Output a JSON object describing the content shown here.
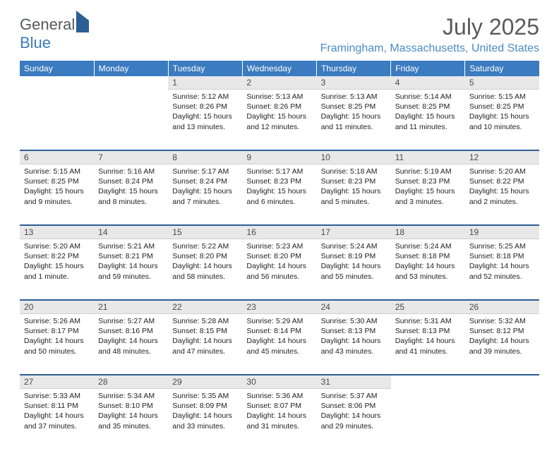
{
  "brand": {
    "part1": "General",
    "part2": "Blue"
  },
  "title": "July 2025",
  "location": "Framingham, Massachusetts, United States",
  "colors": {
    "header_bg": "#3b7bbf",
    "header_text": "#ffffff",
    "daynum_bg": "#e8e8e8",
    "week_sep": "#2b5f93",
    "title_text": "#5a5a5a",
    "location_text": "#4a8bc4",
    "body_text": "#222222"
  },
  "columns": [
    "Sunday",
    "Monday",
    "Tuesday",
    "Wednesday",
    "Thursday",
    "Friday",
    "Saturday"
  ],
  "weeks": [
    [
      null,
      null,
      {
        "n": "1",
        "rise": "5:12 AM",
        "set": "8:26 PM",
        "day": "15 hours and 13 minutes."
      },
      {
        "n": "2",
        "rise": "5:13 AM",
        "set": "8:26 PM",
        "day": "15 hours and 12 minutes."
      },
      {
        "n": "3",
        "rise": "5:13 AM",
        "set": "8:25 PM",
        "day": "15 hours and 11 minutes."
      },
      {
        "n": "4",
        "rise": "5:14 AM",
        "set": "8:25 PM",
        "day": "15 hours and 11 minutes."
      },
      {
        "n": "5",
        "rise": "5:15 AM",
        "set": "8:25 PM",
        "day": "15 hours and 10 minutes."
      }
    ],
    [
      {
        "n": "6",
        "rise": "5:15 AM",
        "set": "8:25 PM",
        "day": "15 hours and 9 minutes."
      },
      {
        "n": "7",
        "rise": "5:16 AM",
        "set": "8:24 PM",
        "day": "15 hours and 8 minutes."
      },
      {
        "n": "8",
        "rise": "5:17 AM",
        "set": "8:24 PM",
        "day": "15 hours and 7 minutes."
      },
      {
        "n": "9",
        "rise": "5:17 AM",
        "set": "8:23 PM",
        "day": "15 hours and 6 minutes."
      },
      {
        "n": "10",
        "rise": "5:18 AM",
        "set": "8:23 PM",
        "day": "15 hours and 5 minutes."
      },
      {
        "n": "11",
        "rise": "5:19 AM",
        "set": "8:23 PM",
        "day": "15 hours and 3 minutes."
      },
      {
        "n": "12",
        "rise": "5:20 AM",
        "set": "8:22 PM",
        "day": "15 hours and 2 minutes."
      }
    ],
    [
      {
        "n": "13",
        "rise": "5:20 AM",
        "set": "8:22 PM",
        "day": "15 hours and 1 minute."
      },
      {
        "n": "14",
        "rise": "5:21 AM",
        "set": "8:21 PM",
        "day": "14 hours and 59 minutes."
      },
      {
        "n": "15",
        "rise": "5:22 AM",
        "set": "8:20 PM",
        "day": "14 hours and 58 minutes."
      },
      {
        "n": "16",
        "rise": "5:23 AM",
        "set": "8:20 PM",
        "day": "14 hours and 56 minutes."
      },
      {
        "n": "17",
        "rise": "5:24 AM",
        "set": "8:19 PM",
        "day": "14 hours and 55 minutes."
      },
      {
        "n": "18",
        "rise": "5:24 AM",
        "set": "8:18 PM",
        "day": "14 hours and 53 minutes."
      },
      {
        "n": "19",
        "rise": "5:25 AM",
        "set": "8:18 PM",
        "day": "14 hours and 52 minutes."
      }
    ],
    [
      {
        "n": "20",
        "rise": "5:26 AM",
        "set": "8:17 PM",
        "day": "14 hours and 50 minutes."
      },
      {
        "n": "21",
        "rise": "5:27 AM",
        "set": "8:16 PM",
        "day": "14 hours and 48 minutes."
      },
      {
        "n": "22",
        "rise": "5:28 AM",
        "set": "8:15 PM",
        "day": "14 hours and 47 minutes."
      },
      {
        "n": "23",
        "rise": "5:29 AM",
        "set": "8:14 PM",
        "day": "14 hours and 45 minutes."
      },
      {
        "n": "24",
        "rise": "5:30 AM",
        "set": "8:13 PM",
        "day": "14 hours and 43 minutes."
      },
      {
        "n": "25",
        "rise": "5:31 AM",
        "set": "8:13 PM",
        "day": "14 hours and 41 minutes."
      },
      {
        "n": "26",
        "rise": "5:32 AM",
        "set": "8:12 PM",
        "day": "14 hours and 39 minutes."
      }
    ],
    [
      {
        "n": "27",
        "rise": "5:33 AM",
        "set": "8:11 PM",
        "day": "14 hours and 37 minutes."
      },
      {
        "n": "28",
        "rise": "5:34 AM",
        "set": "8:10 PM",
        "day": "14 hours and 35 minutes."
      },
      {
        "n": "29",
        "rise": "5:35 AM",
        "set": "8:09 PM",
        "day": "14 hours and 33 minutes."
      },
      {
        "n": "30",
        "rise": "5:36 AM",
        "set": "8:07 PM",
        "day": "14 hours and 31 minutes."
      },
      {
        "n": "31",
        "rise": "5:37 AM",
        "set": "8:06 PM",
        "day": "14 hours and 29 minutes."
      },
      null,
      null
    ]
  ],
  "labels": {
    "sunrise": "Sunrise:",
    "sunset": "Sunset:",
    "daylight": "Daylight:"
  }
}
